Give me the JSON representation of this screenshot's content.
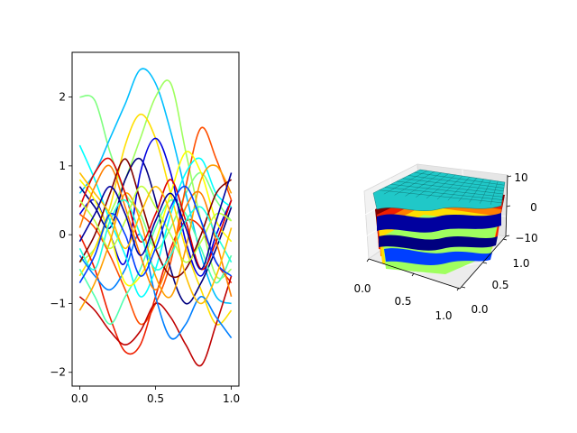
{
  "chart_data": [
    {
      "type": "line",
      "title": "",
      "xlabel": "",
      "ylabel": "",
      "xlim": [
        -0.05,
        1.05
      ],
      "ylim": [
        -2.2,
        2.65
      ],
      "xticks": [
        "0.0",
        "0.5",
        "1.0"
      ],
      "xtick_values": [
        0.0,
        0.5,
        1.0
      ],
      "yticks": [
        "2",
        "1",
        "0",
        "−1",
        "−2"
      ],
      "ytick_values": [
        2,
        1,
        0,
        -1,
        -2
      ],
      "colormap": "jet",
      "grid": false,
      "legend": "none",
      "x": [
        0,
        0.1,
        0.2,
        0.3,
        0.4,
        0.5,
        0.6,
        0.7,
        0.8,
        0.9,
        1.0
      ],
      "series": [
        {
          "color": "#7fff7f",
          "values": [
            2.0,
            1.95,
            1.2,
            0.6,
            0.3,
            -0.2,
            0.1,
            0.6,
            0.9,
            0.5,
            0.2
          ]
        },
        {
          "color": "#00bfff",
          "values": [
            0.6,
            0.9,
            1.4,
            1.9,
            2.4,
            2.2,
            1.5,
            0.6,
            -0.3,
            -0.9,
            -1.0
          ]
        },
        {
          "color": "#9fff5f",
          "values": [
            -0.4,
            -0.2,
            0.3,
            0.8,
            1.4,
            2.0,
            2.2,
            1.2,
            0.2,
            -0.6,
            -0.5
          ]
        },
        {
          "color": "#ffdf00",
          "values": [
            -0.6,
            -0.2,
            0.4,
            1.3,
            1.75,
            1.4,
            0.6,
            -0.2,
            -0.8,
            -1.3,
            -1.1
          ]
        },
        {
          "color": "#ff4f00",
          "values": [
            0.3,
            0.1,
            -0.3,
            -0.8,
            -1.3,
            -1.0,
            -0.4,
            0.7,
            1.55,
            1.1,
            0.5
          ]
        },
        {
          "color": "#ef1f00",
          "values": [
            0.0,
            -0.5,
            -1.2,
            -1.7,
            -1.6,
            -0.9,
            -0.2,
            0.2,
            0.1,
            -0.4,
            -0.7
          ]
        },
        {
          "color": "#bf0000",
          "values": [
            -0.9,
            -1.1,
            -1.4,
            -1.6,
            -1.4,
            -1.0,
            -1.2,
            -1.6,
            -1.9,
            -1.3,
            -0.6
          ]
        },
        {
          "color": "#00007f",
          "values": [
            0.7,
            0.4,
            0.1,
            0.8,
            1.1,
            0.5,
            -0.5,
            -1.0,
            -0.7,
            -0.2,
            0.4
          ]
        },
        {
          "color": "#0000df",
          "values": [
            0.3,
            0.5,
            0.0,
            -0.4,
            0.9,
            1.4,
            0.9,
            -0.1,
            -0.6,
            0.0,
            0.5
          ]
        },
        {
          "color": "#007fff",
          "values": [
            -0.3,
            -0.6,
            -0.8,
            -0.5,
            0.0,
            -0.9,
            -1.5,
            -1.3,
            -0.9,
            -1.2,
            -1.5
          ]
        },
        {
          "color": "#00ffff",
          "values": [
            1.3,
            0.8,
            0.2,
            -0.3,
            -0.9,
            -0.5,
            0.3,
            0.9,
            1.1,
            0.6,
            0.4
          ]
        },
        {
          "color": "#4fffaf",
          "values": [
            -0.5,
            -0.9,
            -1.3,
            -0.9,
            -0.5,
            0.1,
            0.5,
            0.3,
            -0.2,
            -0.7,
            -0.3
          ]
        },
        {
          "color": "#ffff00",
          "values": [
            0.8,
            0.5,
            0.0,
            -0.7,
            -0.6,
            -0.1,
            0.6,
            1.2,
            0.9,
            0.2,
            -0.1
          ]
        },
        {
          "color": "#ff9f00",
          "values": [
            -1.1,
            -0.7,
            -0.1,
            0.6,
            0.2,
            -0.6,
            -0.9,
            -0.2,
            0.8,
            1.0,
            0.6
          ]
        },
        {
          "color": "#ff7f00",
          "values": [
            0.1,
            0.7,
            1.0,
            0.4,
            -0.3,
            -0.8,
            -0.3,
            0.4,
            0.6,
            -0.1,
            -0.9
          ]
        },
        {
          "color": "#7f0000",
          "values": [
            -0.4,
            0.0,
            0.6,
            1.1,
            0.5,
            -0.2,
            -0.6,
            -0.5,
            0.0,
            0.6,
            0.8
          ]
        },
        {
          "color": "#df0000",
          "values": [
            0.4,
            0.9,
            1.1,
            0.6,
            -0.1,
            0.3,
            0.8,
            0.2,
            -0.5,
            -0.1,
            0.5
          ]
        },
        {
          "color": "#1fffdf",
          "values": [
            -0.2,
            -0.5,
            0.2,
            0.5,
            0.0,
            -0.5,
            -0.3,
            0.2,
            0.4,
            0.0,
            -0.4
          ]
        },
        {
          "color": "#bfff3f",
          "values": [
            0.5,
            0.2,
            -0.2,
            0.2,
            0.7,
            0.4,
            0.0,
            -0.4,
            -0.1,
            0.3,
            0.2
          ]
        },
        {
          "color": "#003fff",
          "values": [
            -0.7,
            -0.3,
            0.3,
            0.0,
            -0.6,
            -0.2,
            0.4,
            0.7,
            0.2,
            -0.4,
            -0.6
          ]
        },
        {
          "color": "#ffbf00",
          "values": [
            0.9,
            0.6,
            0.3,
            -0.2,
            0.3,
            0.7,
            0.3,
            -0.6,
            -1.0,
            -0.6,
            0.1
          ]
        },
        {
          "color": "#00009f",
          "values": [
            -0.1,
            0.3,
            0.7,
            0.3,
            -0.3,
            0.2,
            0.6,
            0.1,
            -0.5,
            0.2,
            0.9
          ]
        }
      ]
    },
    {
      "type": "surface3d",
      "title": "",
      "xlabel": "",
      "ylabel": "",
      "zlabel": "",
      "xlim": [
        0,
        1
      ],
      "ylim": [
        0,
        1
      ],
      "zlim": [
        -10,
        10
      ],
      "xticks": [
        "0.0",
        "0.5",
        "1.0"
      ],
      "yticks": [
        "0.0",
        "0.5",
        "1.0"
      ],
      "zticks": [
        "10",
        "0",
        "−10"
      ],
      "colormap": "jet",
      "grid": true,
      "legend": "none",
      "surface_colors": [
        "#00007f",
        "#0000df",
        "#007fff",
        "#00ffff",
        "#7fff7f",
        "#ffff00",
        "#ff7f00",
        "#df0000",
        "#7f0000"
      ],
      "top_surface_color": "#20c8c8"
    }
  ]
}
